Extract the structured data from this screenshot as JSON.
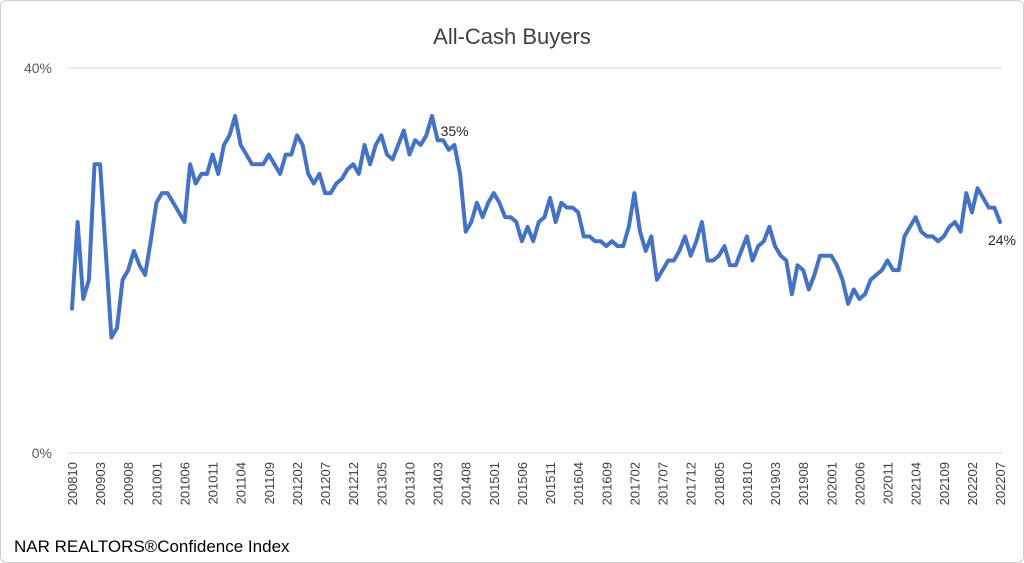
{
  "source_note": "NAR REALTORS®Confidence Index",
  "colors": {
    "line": "#4472C4",
    "gridline": "#d9d9d9",
    "title": "#404040"
  },
  "chart_data": {
    "type": "line",
    "title": "All-Cash Buyers",
    "xlabel": "",
    "ylabel": "",
    "ylim": [
      0,
      40
    ],
    "y_ticks": [
      "0%",
      "40%"
    ],
    "grid": true,
    "x_tick_labels": [
      "200810",
      "200903",
      "200908",
      "201001",
      "201006",
      "201011",
      "201104",
      "201109",
      "201202",
      "201207",
      "201212",
      "201305",
      "201310",
      "201403",
      "201408",
      "201501",
      "201506",
      "201511",
      "201604",
      "201609",
      "201702",
      "201707",
      "201712",
      "201805",
      "201810",
      "201903",
      "201908",
      "202001",
      "202006",
      "202011",
      "202104",
      "202109",
      "202202",
      "202207"
    ],
    "annotations": [
      {
        "label": "35%",
        "x": "201403"
      },
      {
        "label": "24%",
        "x": "202207"
      }
    ],
    "series": [
      {
        "start": "2008-10",
        "end": "2022-07",
        "frequency": "monthly",
        "values": [
          15,
          24,
          16,
          18,
          30,
          30,
          21,
          12,
          13,
          18,
          19,
          21,
          19.5,
          18.5,
          22,
          26,
          27,
          27,
          26,
          25,
          24,
          30,
          28,
          29,
          29,
          31,
          29,
          32,
          33,
          35,
          32,
          31,
          30,
          30,
          30,
          31,
          30,
          29,
          31,
          31,
          33,
          32,
          29,
          28,
          29,
          27,
          27,
          28,
          28.5,
          29.5,
          30,
          29,
          32,
          30,
          32,
          33,
          31,
          30.5,
          32,
          33.5,
          31,
          32.5,
          32,
          33,
          35,
          32.5,
          32.5,
          31.5,
          32,
          29,
          23,
          24,
          26,
          24.5,
          26,
          27,
          26,
          24.5,
          24.5,
          24,
          22,
          23.5,
          22,
          24,
          24.5,
          26.5,
          24,
          26,
          25.5,
          25.5,
          25,
          22.5,
          22.5,
          22,
          22,
          21.5,
          22,
          21.5,
          21.5,
          23.5,
          27,
          23,
          21,
          22.5,
          18,
          19,
          20,
          20,
          21,
          22.5,
          20.5,
          22,
          24,
          20,
          20,
          20.5,
          21.5,
          19.5,
          19.5,
          21,
          22.5,
          20,
          21.5,
          22,
          23.5,
          21.5,
          20.5,
          20,
          16.5,
          19.5,
          19,
          17,
          18.5,
          20.5,
          20.5,
          20.5,
          19.5,
          18,
          15.5,
          17,
          16,
          16.5,
          18,
          18.5,
          19,
          20,
          19,
          19,
          22.5,
          23.5,
          24.5,
          23,
          22.5,
          22.5,
          22,
          22.5,
          23.5,
          24,
          23,
          27,
          25,
          27.5,
          26.5,
          25.5,
          25.5,
          24
        ]
      }
    ]
  }
}
